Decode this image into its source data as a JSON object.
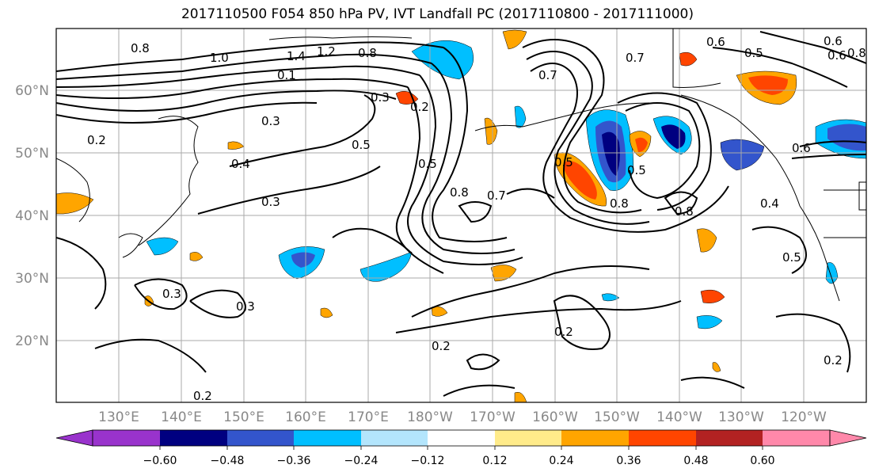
{
  "title": "2017110500 F054 850 hPa PV, IVT Landfall PC (2017110800 - 2017111000)",
  "lon_labels": [
    "130°E",
    "140°E",
    "150°E",
    "160°E",
    "170°E",
    "180°W",
    "170°W",
    "160°W",
    "150°W",
    "140°W",
    "130°W",
    "120°W"
  ],
  "lat_labels": [
    "60°N",
    "50°N",
    "40°N",
    "30°N",
    "20°N"
  ],
  "colorbar": {
    "ticks": [
      "−0.60",
      "−0.48",
      "−0.36",
      "−0.24",
      "−0.12",
      "0.12",
      "0.24",
      "0.36",
      "0.48",
      "0.60"
    ],
    "colors": [
      "#9933cc",
      "#000080",
      "#3355cc",
      "#00bfff",
      "#b3e5fc",
      "#ffffff",
      "#ffeb8a",
      "#ffa500",
      "#ff4500",
      "#b22222",
      "#ff88aa"
    ]
  },
  "contour_labels": [
    "0.8",
    "1.0",
    "1.4",
    "1.2",
    "0.8",
    "0.7",
    "0.6",
    "0.5",
    "0.6",
    "0.8",
    "0.3",
    "0.2",
    "0.3",
    "0.5",
    "0.4",
    "0.3",
    "0.5",
    "0.8",
    "0.7",
    "0.5",
    "0.8",
    "0.5",
    "0.8",
    "0.6",
    "0.4",
    "0.5",
    "0.3",
    "0.3",
    "0.2",
    "0.2",
    "0.2",
    "0.1",
    "0.2",
    "0.7",
    "0.6",
    "0.2"
  ]
}
